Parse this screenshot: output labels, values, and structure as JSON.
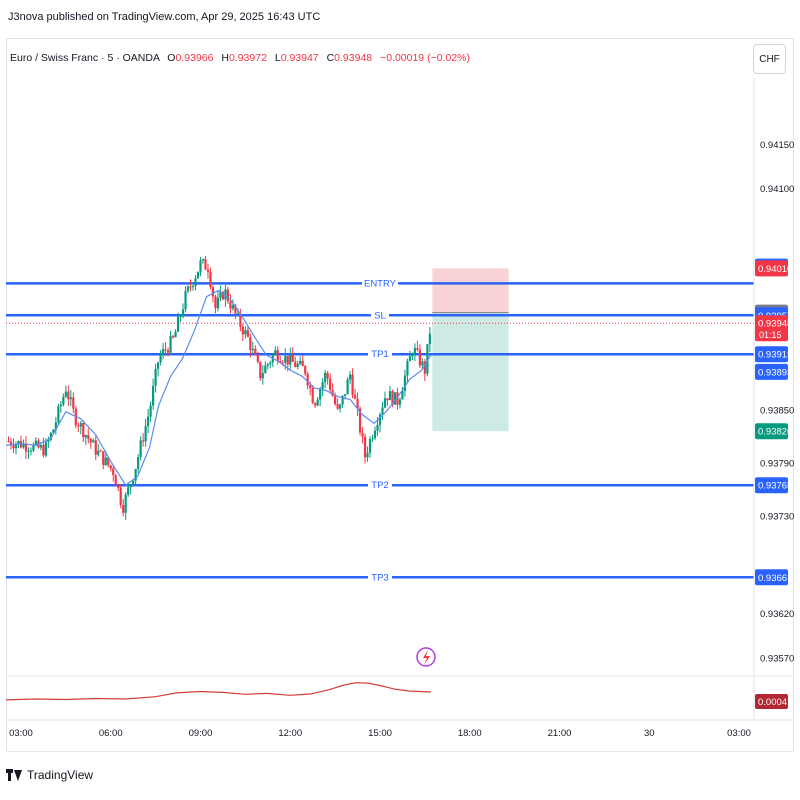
{
  "caption": "J3nova published on TradingView.com, Apr 29, 2025 16:43 UTC",
  "symbol": {
    "name": "Euro / Swiss Franc · 5 · OANDA",
    "o_label": "O",
    "o_value": "0.93966",
    "h_label": "H",
    "h_value": "0.93972",
    "l_label": "L",
    "l_value": "0.93947",
    "c_label": "C",
    "c_value": "0.93948",
    "change": "−0.00019 (−0.02%)"
  },
  "currency_button": "CHF",
  "brand": "TradingView",
  "icons": [
    "tradingview-logo-icon",
    "lightning-icon"
  ],
  "colors": {
    "up": "#089981",
    "down": "#f23645",
    "level_line": "#2962ff",
    "ma": "#5b8cf0",
    "stop_zone": "#f8d3d6",
    "target_zone": "#cdeae4",
    "oscillator": "#d43c3c"
  },
  "chart_data": {
    "type": "candlestick",
    "title": "",
    "xlabel": "",
    "ylabel": "",
    "ylim": [
      0.93545,
      0.94225
    ],
    "xlim_hours": [
      2.5,
      27.5
    ],
    "x_ticks": [
      "03:00",
      "06:00",
      "09:00",
      "12:00",
      "15:00",
      "18:00",
      "21:00",
      "30",
      "03:00"
    ],
    "x_tick_hours": [
      3,
      6,
      9,
      12,
      15,
      18,
      21,
      24,
      27
    ],
    "y_ticks": [
      "0.94150",
      "0.94100",
      "0.93850",
      "0.93790",
      "0.93730",
      "0.93620",
      "0.93570"
    ],
    "y_tick_values": [
      0.9415,
      0.941,
      0.9385,
      0.9379,
      0.9373,
      0.9362,
      0.9357
    ],
    "grid": false,
    "price_path": {
      "hours": [
        2.5,
        3.0,
        3.8,
        4.1,
        4.5,
        4.8,
        5.5,
        6.1,
        6.4,
        6.8,
        7.3,
        7.6,
        8.1,
        8.5,
        9.0,
        9.25,
        9.5,
        9.8,
        10.2,
        10.6,
        11.0,
        11.5,
        12.0,
        12.5,
        12.8,
        13.2,
        13.6,
        14.0,
        14.3,
        14.5,
        14.8,
        15.2,
        15.6,
        16.1,
        16.5,
        16.7
      ],
      "prices": [
        0.93815,
        0.93812,
        0.93805,
        0.9383,
        0.93875,
        0.93842,
        0.93805,
        0.9378,
        0.9374,
        0.93782,
        0.9385,
        0.93908,
        0.9393,
        0.93978,
        0.94015,
        0.94012,
        0.93965,
        0.93985,
        0.93955,
        0.9393,
        0.9389,
        0.93915,
        0.93905,
        0.93895,
        0.93858,
        0.93892,
        0.93845,
        0.9389,
        0.93835,
        0.93798,
        0.9383,
        0.93868,
        0.9386,
        0.9392,
        0.93895,
        0.93948
      ]
    },
    "moving_average": {
      "hours": [
        2.5,
        3.0,
        3.5,
        4.0,
        4.5,
        5.0,
        5.5,
        6.0,
        6.5,
        6.9,
        7.3,
        7.6,
        8.0,
        8.4,
        8.8,
        9.2,
        9.6,
        10.0,
        10.4,
        10.8,
        11.2,
        11.6,
        12.0,
        12.4,
        12.8,
        13.2,
        13.6,
        14.0,
        14.4,
        14.8,
        15.2,
        15.6,
        16.0,
        16.4,
        16.7
      ],
      "prices": [
        0.9381,
        0.93812,
        0.9381,
        0.93818,
        0.93848,
        0.9384,
        0.93822,
        0.93792,
        0.93765,
        0.93775,
        0.93808,
        0.93855,
        0.93888,
        0.93908,
        0.9394,
        0.93978,
        0.93985,
        0.93975,
        0.93955,
        0.93933,
        0.93912,
        0.93905,
        0.93895,
        0.93888,
        0.93875,
        0.93872,
        0.93865,
        0.93862,
        0.93845,
        0.93835,
        0.93848,
        0.93865,
        0.93885,
        0.93895,
        0.93912
      ]
    },
    "levels": [
      {
        "label": "ENTRY",
        "price": 0.93993,
        "badge": ""
      },
      {
        "label": "SL",
        "price": 0.93957,
        "badge": "0.93957"
      },
      {
        "label": "TP1",
        "price": 0.93913,
        "badge": "0.93913"
      },
      {
        "label": "TP2",
        "price": 0.93765,
        "badge": "0.93765"
      },
      {
        "label": "TP3",
        "price": 0.93661,
        "badge": "0.93661"
      }
    ],
    "position_tool": {
      "start_hour": 16.75,
      "end_hour": 19.3,
      "stop_price": 0.9401,
      "entry_price": 0.9396,
      "target_price": 0.93826,
      "stop_label": "0.94010",
      "entry_label": "0.93960",
      "target_label": "0.93826"
    },
    "price_badges": [
      {
        "text": "0.94012",
        "price": 0.94012,
        "kind": "blue"
      },
      {
        "text": "0.94010",
        "price": 0.9401,
        "kind": "red"
      },
      {
        "text": "0.93960",
        "price": 0.9396,
        "kind": "gray"
      },
      {
        "text": "0.93957",
        "price": 0.93957,
        "kind": "blue"
      },
      {
        "text": "0.93948",
        "price": 0.93948,
        "kind": "red",
        "sub": "01:15"
      },
      {
        "text": "0.93913",
        "price": 0.93913,
        "kind": "blue"
      },
      {
        "text": "0.93893",
        "price": 0.93893,
        "kind": "blue"
      },
      {
        "text": "0.93826",
        "price": 0.93826,
        "kind": "green"
      },
      {
        "text": "0.93765",
        "price": 0.93765,
        "kind": "blue"
      },
      {
        "text": "0.93661",
        "price": 0.93661,
        "kind": "blue"
      }
    ],
    "oscillator": {
      "badge": "0.00041",
      "hours": [
        2.5,
        3.5,
        4.5,
        5.5,
        6.5,
        7.5,
        8.2,
        9.0,
        9.8,
        10.5,
        11.2,
        12.0,
        12.7,
        13.3,
        13.8,
        14.2,
        14.6,
        15.0,
        15.5,
        16.0,
        16.7
      ],
      "values": [
        0.00013,
        0.00015,
        0.00014,
        0.00016,
        0.00015,
        0.0002,
        0.00028,
        0.00031,
        0.00029,
        0.00025,
        0.00027,
        0.00023,
        0.00026,
        0.00035,
        0.00045,
        0.0005,
        0.00049,
        0.00044,
        0.00036,
        0.00032,
        0.0003
      ]
    }
  }
}
